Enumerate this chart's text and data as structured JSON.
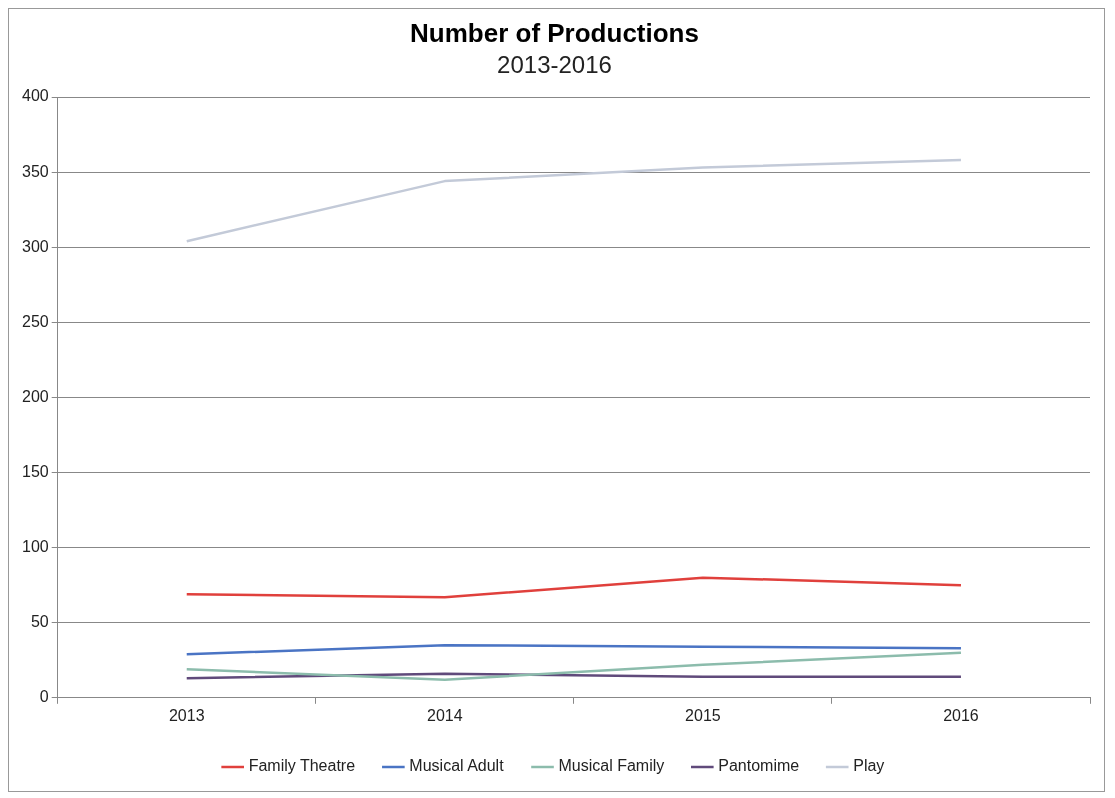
{
  "chart_data": {
    "type": "line",
    "title": "Number of Productions",
    "subtitle": "2013-2016",
    "categories": [
      "2013",
      "2014",
      "2015",
      "2016"
    ],
    "series": [
      {
        "name": "Family Theatre",
        "color": "#e0403c",
        "values": [
          69,
          67,
          80,
          75
        ]
      },
      {
        "name": "Musical Adult",
        "color": "#4a74c4",
        "values": [
          29,
          35,
          34,
          33
        ]
      },
      {
        "name": "Musical Family",
        "color": "#8cbcac",
        "values": [
          19,
          12,
          22,
          30
        ]
      },
      {
        "name": "Pantomime",
        "color": "#604a7b",
        "values": [
          13,
          16,
          14,
          14
        ]
      },
      {
        "name": "Play",
        "color": "#c3cad8",
        "values": [
          304,
          344,
          353,
          358
        ]
      }
    ],
    "ylim": [
      0,
      400
    ],
    "yticks": [
      0,
      50,
      100,
      150,
      200,
      250,
      300,
      350,
      400
    ],
    "grid": "y",
    "legend": "bottom",
    "marker": "none",
    "line_style": "solid"
  }
}
